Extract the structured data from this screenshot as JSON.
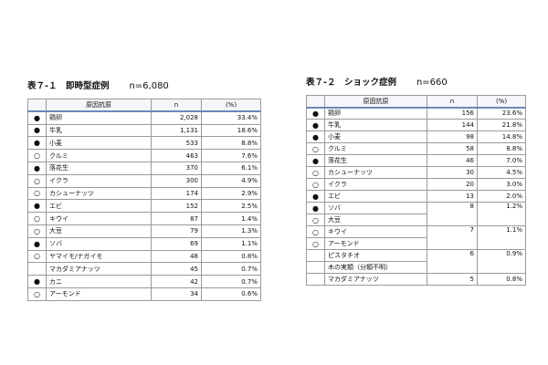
{
  "tables": [
    {
      "title": "表７-１　即時型症例",
      "count": "n=6,080",
      "header": [
        "原因抗原",
        "n",
        "(%)"
      ],
      "rows": [
        {
          "allergens": [
            {
              "mark": "●",
              "name": "鶏卵"
            }
          ],
          "n": "2,028",
          "pct": "33.4%"
        },
        {
          "allergens": [
            {
              "mark": "●",
              "name": "牛乳"
            }
          ],
          "n": "1,131",
          "pct": "18.6%"
        },
        {
          "allergens": [
            {
              "mark": "●",
              "name": "小麦"
            }
          ],
          "n": "533",
          "pct": "8.8%"
        },
        {
          "allergens": [
            {
              "mark": "○",
              "name": "クルミ"
            }
          ],
          "n": "463",
          "pct": "7.6%"
        },
        {
          "allergens": [
            {
              "mark": "●",
              "name": "落花生"
            }
          ],
          "n": "370",
          "pct": "6.1%"
        },
        {
          "allergens": [
            {
              "mark": "○",
              "name": "イクラ"
            }
          ],
          "n": "300",
          "pct": "4.9%"
        },
        {
          "allergens": [
            {
              "mark": "○",
              "name": "カシューナッツ"
            }
          ],
          "n": "174",
          "pct": "2.9%"
        },
        {
          "allergens": [
            {
              "mark": "●",
              "name": "エビ"
            }
          ],
          "n": "152",
          "pct": "2.5%"
        },
        {
          "allergens": [
            {
              "mark": "○",
              "name": "キウイ"
            }
          ],
          "n": "87",
          "pct": "1.4%"
        },
        {
          "allergens": [
            {
              "mark": "○",
              "name": "大豆"
            }
          ],
          "n": "79",
          "pct": "1.3%"
        },
        {
          "allergens": [
            {
              "mark": "●",
              "name": "ソバ"
            }
          ],
          "n": "69",
          "pct": "1.1%"
        },
        {
          "allergens": [
            {
              "mark": "○",
              "name": "ヤマイモ/ナガイモ"
            }
          ],
          "n": "48",
          "pct": "0.8%"
        },
        {
          "allergens": [
            {
              "name": "マカダミアナッツ"
            }
          ],
          "n": "45",
          "pct": "0.7%"
        },
        {
          "allergens": [
            {
              "mark": "●",
              "name": "カニ"
            }
          ],
          "n": "42",
          "pct": "0.7%"
        },
        {
          "allergens": [
            {
              "mark": "○",
              "name": "アーモンド"
            }
          ],
          "n": "34",
          "pct": "0.6%"
        }
      ]
    },
    {
      "title": "表７-２　ショック症例",
      "count": "n=660",
      "header": [
        "原因抗原",
        "n",
        "(%)"
      ],
      "rows": [
        {
          "allergens": [
            {
              "mark": "●",
              "name": "鶏卵"
            }
          ],
          "n": "156",
          "pct": "23.6%"
        },
        {
          "allergens": [
            {
              "mark": "●",
              "name": "牛乳"
            }
          ],
          "n": "144",
          "pct": "21.8%"
        },
        {
          "allergens": [
            {
              "mark": "●",
              "name": "小麦"
            }
          ],
          "n": "98",
          "pct": "14.8%"
        },
        {
          "allergens": [
            {
              "mark": "○",
              "name": "クルミ"
            }
          ],
          "n": "58",
          "pct": "8.8%"
        },
        {
          "allergens": [
            {
              "mark": "●",
              "name": "落花生"
            }
          ],
          "n": "46",
          "pct": "7.0%"
        },
        {
          "allergens": [
            {
              "mark": "○",
              "name": "カシューナッツ"
            }
          ],
          "n": "30",
          "pct": "4.5%"
        },
        {
          "allergens": [
            {
              "mark": "○",
              "name": "イクラ"
            }
          ],
          "n": "20",
          "pct": "3.0%"
        },
        {
          "allergens": [
            {
              "mark": "●",
              "name": "エビ"
            }
          ],
          "n": "13",
          "pct": "2.0%"
        },
        {
          "allergens": [
            {
              "mark": "●",
              "name": "ソバ"
            },
            {
              "mark": "○",
              "name": "大豆"
            }
          ],
          "n": "8",
          "pct": "1.2%"
        },
        {
          "allergens": [
            {
              "mark": "○",
              "name": "キウイ"
            },
            {
              "mark": "○",
              "name": "アーモンド"
            }
          ],
          "n": "7",
          "pct": "1.1%"
        },
        {
          "allergens": [
            {
              "name": "ピスタチオ"
            },
            {
              "name": "木の実類（分類不明）"
            }
          ],
          "n": "6",
          "pct": "0.9%"
        },
        {
          "allergens": [
            {
              "name": "マカダミアナッツ"
            }
          ],
          "n": "5",
          "pct": "0.8%"
        }
      ]
    }
  ]
}
